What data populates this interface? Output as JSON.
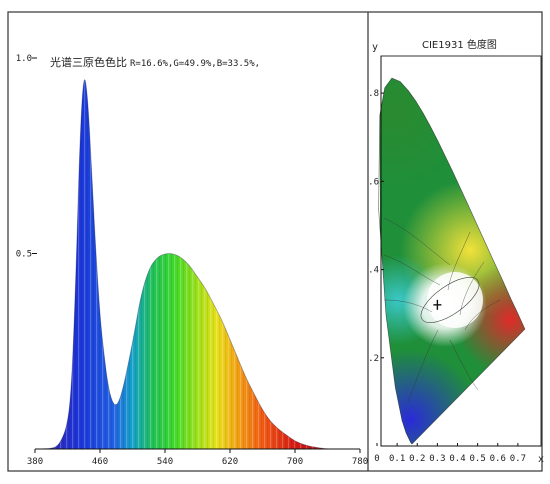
{
  "chart_data": [
    {
      "type": "area",
      "title": "光谱三原色色比",
      "ratio_text": "R=16.6%,G=49.9%,B=33.5%,",
      "ratios": {
        "R": 16.6,
        "G": 49.9,
        "B": 33.5
      },
      "xlabel": "",
      "ylabel": "",
      "xlim": [
        380,
        780
      ],
      "ylim": [
        0,
        1.0
      ],
      "x_ticks": [
        "380",
        "460",
        "540",
        "620",
        "700",
        "780"
      ],
      "y_ticks": [
        "0.5",
        "1.0"
      ],
      "grid": false,
      "x": [
        380,
        400,
        410,
        420,
        425,
        430,
        435,
        440,
        445,
        450,
        455,
        460,
        465,
        470,
        475,
        480,
        485,
        490,
        500,
        510,
        520,
        530,
        540,
        550,
        560,
        570,
        580,
        590,
        600,
        610,
        620,
        630,
        640,
        650,
        660,
        670,
        680,
        690,
        700,
        710,
        720,
        730,
        740,
        760,
        780
      ],
      "values": [
        0,
        0,
        0.01,
        0.06,
        0.16,
        0.42,
        0.78,
        0.97,
        0.9,
        0.7,
        0.5,
        0.34,
        0.24,
        0.16,
        0.12,
        0.11,
        0.13,
        0.17,
        0.27,
        0.39,
        0.46,
        0.49,
        0.5,
        0.5,
        0.49,
        0.47,
        0.44,
        0.41,
        0.37,
        0.33,
        0.28,
        0.23,
        0.18,
        0.14,
        0.1,
        0.07,
        0.05,
        0.035,
        0.02,
        0.012,
        0.006,
        0.003,
        0,
        0,
        0
      ]
    },
    {
      "type": "scatter",
      "title": "CIE1931 色度图",
      "xlabel": "x",
      "ylabel": "y",
      "xlim": [
        0,
        0.8
      ],
      "ylim": [
        0,
        0.9
      ],
      "x_ticks": [
        "0",
        "0.1",
        "0.2",
        "0.3",
        "0.4",
        "0.5",
        "0.6",
        "0.7"
      ],
      "y_ticks": [
        ".2",
        ".4",
        ".6",
        ".8"
      ],
      "grid": false,
      "x": [
        0.3
      ],
      "y": [
        0.32
      ]
    }
  ],
  "colors": {
    "frame": "#333333",
    "axis": "#111111",
    "marker": "#111111"
  }
}
